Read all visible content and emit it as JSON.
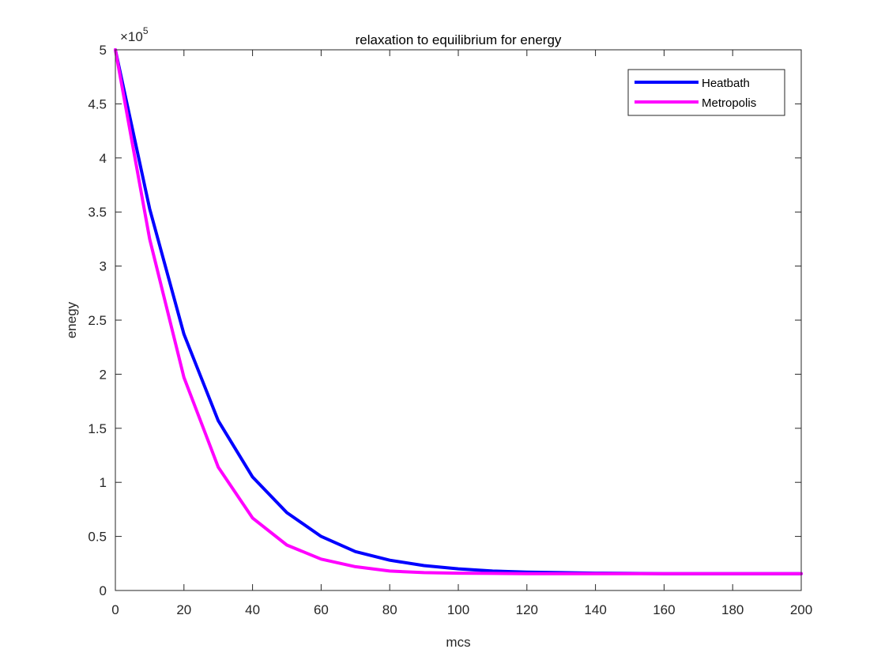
{
  "chart_data": {
    "type": "line",
    "title": "relaxation to equilibrium for energy",
    "xlabel": "mcs",
    "ylabel": "enegy",
    "xlim": [
      0,
      200
    ],
    "ylim": [
      0,
      5
    ],
    "y_multiplier_base": "×10",
    "y_multiplier_exponent": "5",
    "x_ticks": [
      "0",
      "20",
      "40",
      "60",
      "80",
      "100",
      "120",
      "140",
      "160",
      "180",
      "200"
    ],
    "y_ticks": [
      "0",
      "0.5",
      "1",
      "1.5",
      "2",
      "2.5",
      "3",
      "3.5",
      "4",
      "4.5",
      "5"
    ],
    "grid": false,
    "legend_position": "top-right",
    "series": [
      {
        "name": "Heatbath",
        "color": "#0000ff",
        "x": [
          0,
          10,
          20,
          30,
          40,
          50,
          60,
          70,
          80,
          90,
          100,
          110,
          120,
          130,
          140,
          150,
          160,
          170,
          180,
          190,
          200
        ],
        "y": [
          5.0,
          3.53,
          2.37,
          1.57,
          1.05,
          0.72,
          0.5,
          0.36,
          0.28,
          0.23,
          0.2,
          0.18,
          0.17,
          0.165,
          0.16,
          0.158,
          0.156,
          0.155,
          0.155,
          0.155,
          0.155
        ]
      },
      {
        "name": "Metropolis",
        "color": "#ff00ff",
        "x": [
          0,
          10,
          20,
          30,
          40,
          50,
          60,
          70,
          80,
          90,
          100,
          110,
          120,
          130,
          140,
          150,
          160,
          170,
          180,
          190,
          200
        ],
        "y": [
          5.0,
          3.25,
          1.97,
          1.14,
          0.67,
          0.42,
          0.29,
          0.22,
          0.18,
          0.165,
          0.16,
          0.158,
          0.156,
          0.155,
          0.155,
          0.155,
          0.155,
          0.155,
          0.155,
          0.155,
          0.155
        ]
      }
    ]
  }
}
